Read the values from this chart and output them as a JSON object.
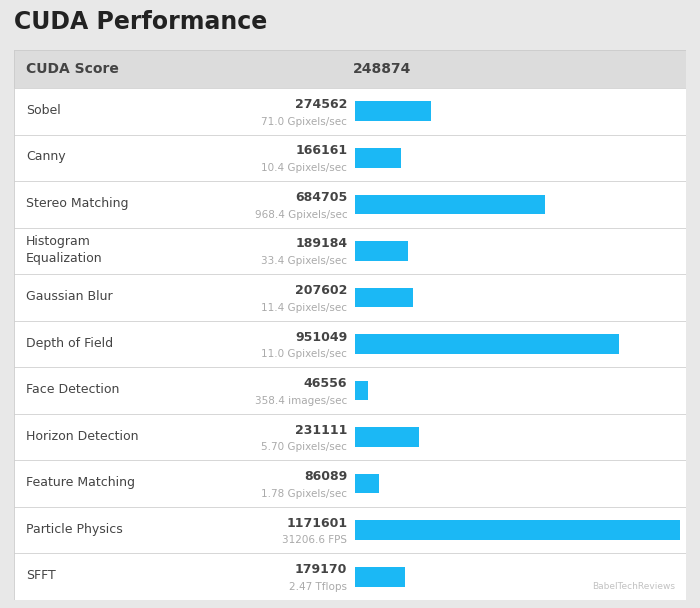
{
  "title": "CUDA Performance",
  "cuda_score_label": "CUDA Score",
  "cuda_score_value": "248874",
  "rows": [
    {
      "label": "Sobel",
      "score": "274562",
      "unit": "71.0 Gpixels/sec",
      "value": 274562
    },
    {
      "label": "Canny",
      "score": "166161",
      "unit": "10.4 Gpixels/sec",
      "value": 166161
    },
    {
      "label": "Stereo Matching",
      "score": "684705",
      "unit": "968.4 Gpixels/sec",
      "value": 684705
    },
    {
      "label": "Histogram\nEqualization",
      "score": "189184",
      "unit": "33.4 Gpixels/sec",
      "value": 189184
    },
    {
      "label": "Gaussian Blur",
      "score": "207602",
      "unit": "11.4 Gpixels/sec",
      "value": 207602
    },
    {
      "label": "Depth of Field",
      "score": "951049",
      "unit": "11.0 Gpixels/sec",
      "value": 951049
    },
    {
      "label": "Face Detection",
      "score": "46556",
      "unit": "358.4 images/sec",
      "value": 46556
    },
    {
      "label": "Horizon Detection",
      "score": "231111",
      "unit": "5.70 Gpixels/sec",
      "value": 231111
    },
    {
      "label": "Feature Matching",
      "score": "86089",
      "unit": "1.78 Gpixels/sec",
      "value": 86089
    },
    {
      "label": "Particle Physics",
      "score": "1171601",
      "unit": "31206.6 FPS",
      "value": 1171601
    },
    {
      "label": "SFFT",
      "score": "179170",
      "unit": "2.47 Tflops",
      "value": 179170
    }
  ],
  "bar_color": "#1BB8F5",
  "outer_bg": "#E8E8E8",
  "header_bg": "#DCDCDC",
  "row_bg": "#FFFFFF",
  "border_color": "#CCCCCC",
  "title_color": "#222222",
  "label_color": "#444444",
  "score_color": "#444444",
  "unit_color": "#AAAAAA",
  "watermark": "BabelTechReviews",
  "max_value": 1171601,
  "fig_width": 7.0,
  "fig_height": 6.08,
  "dpi": 100
}
